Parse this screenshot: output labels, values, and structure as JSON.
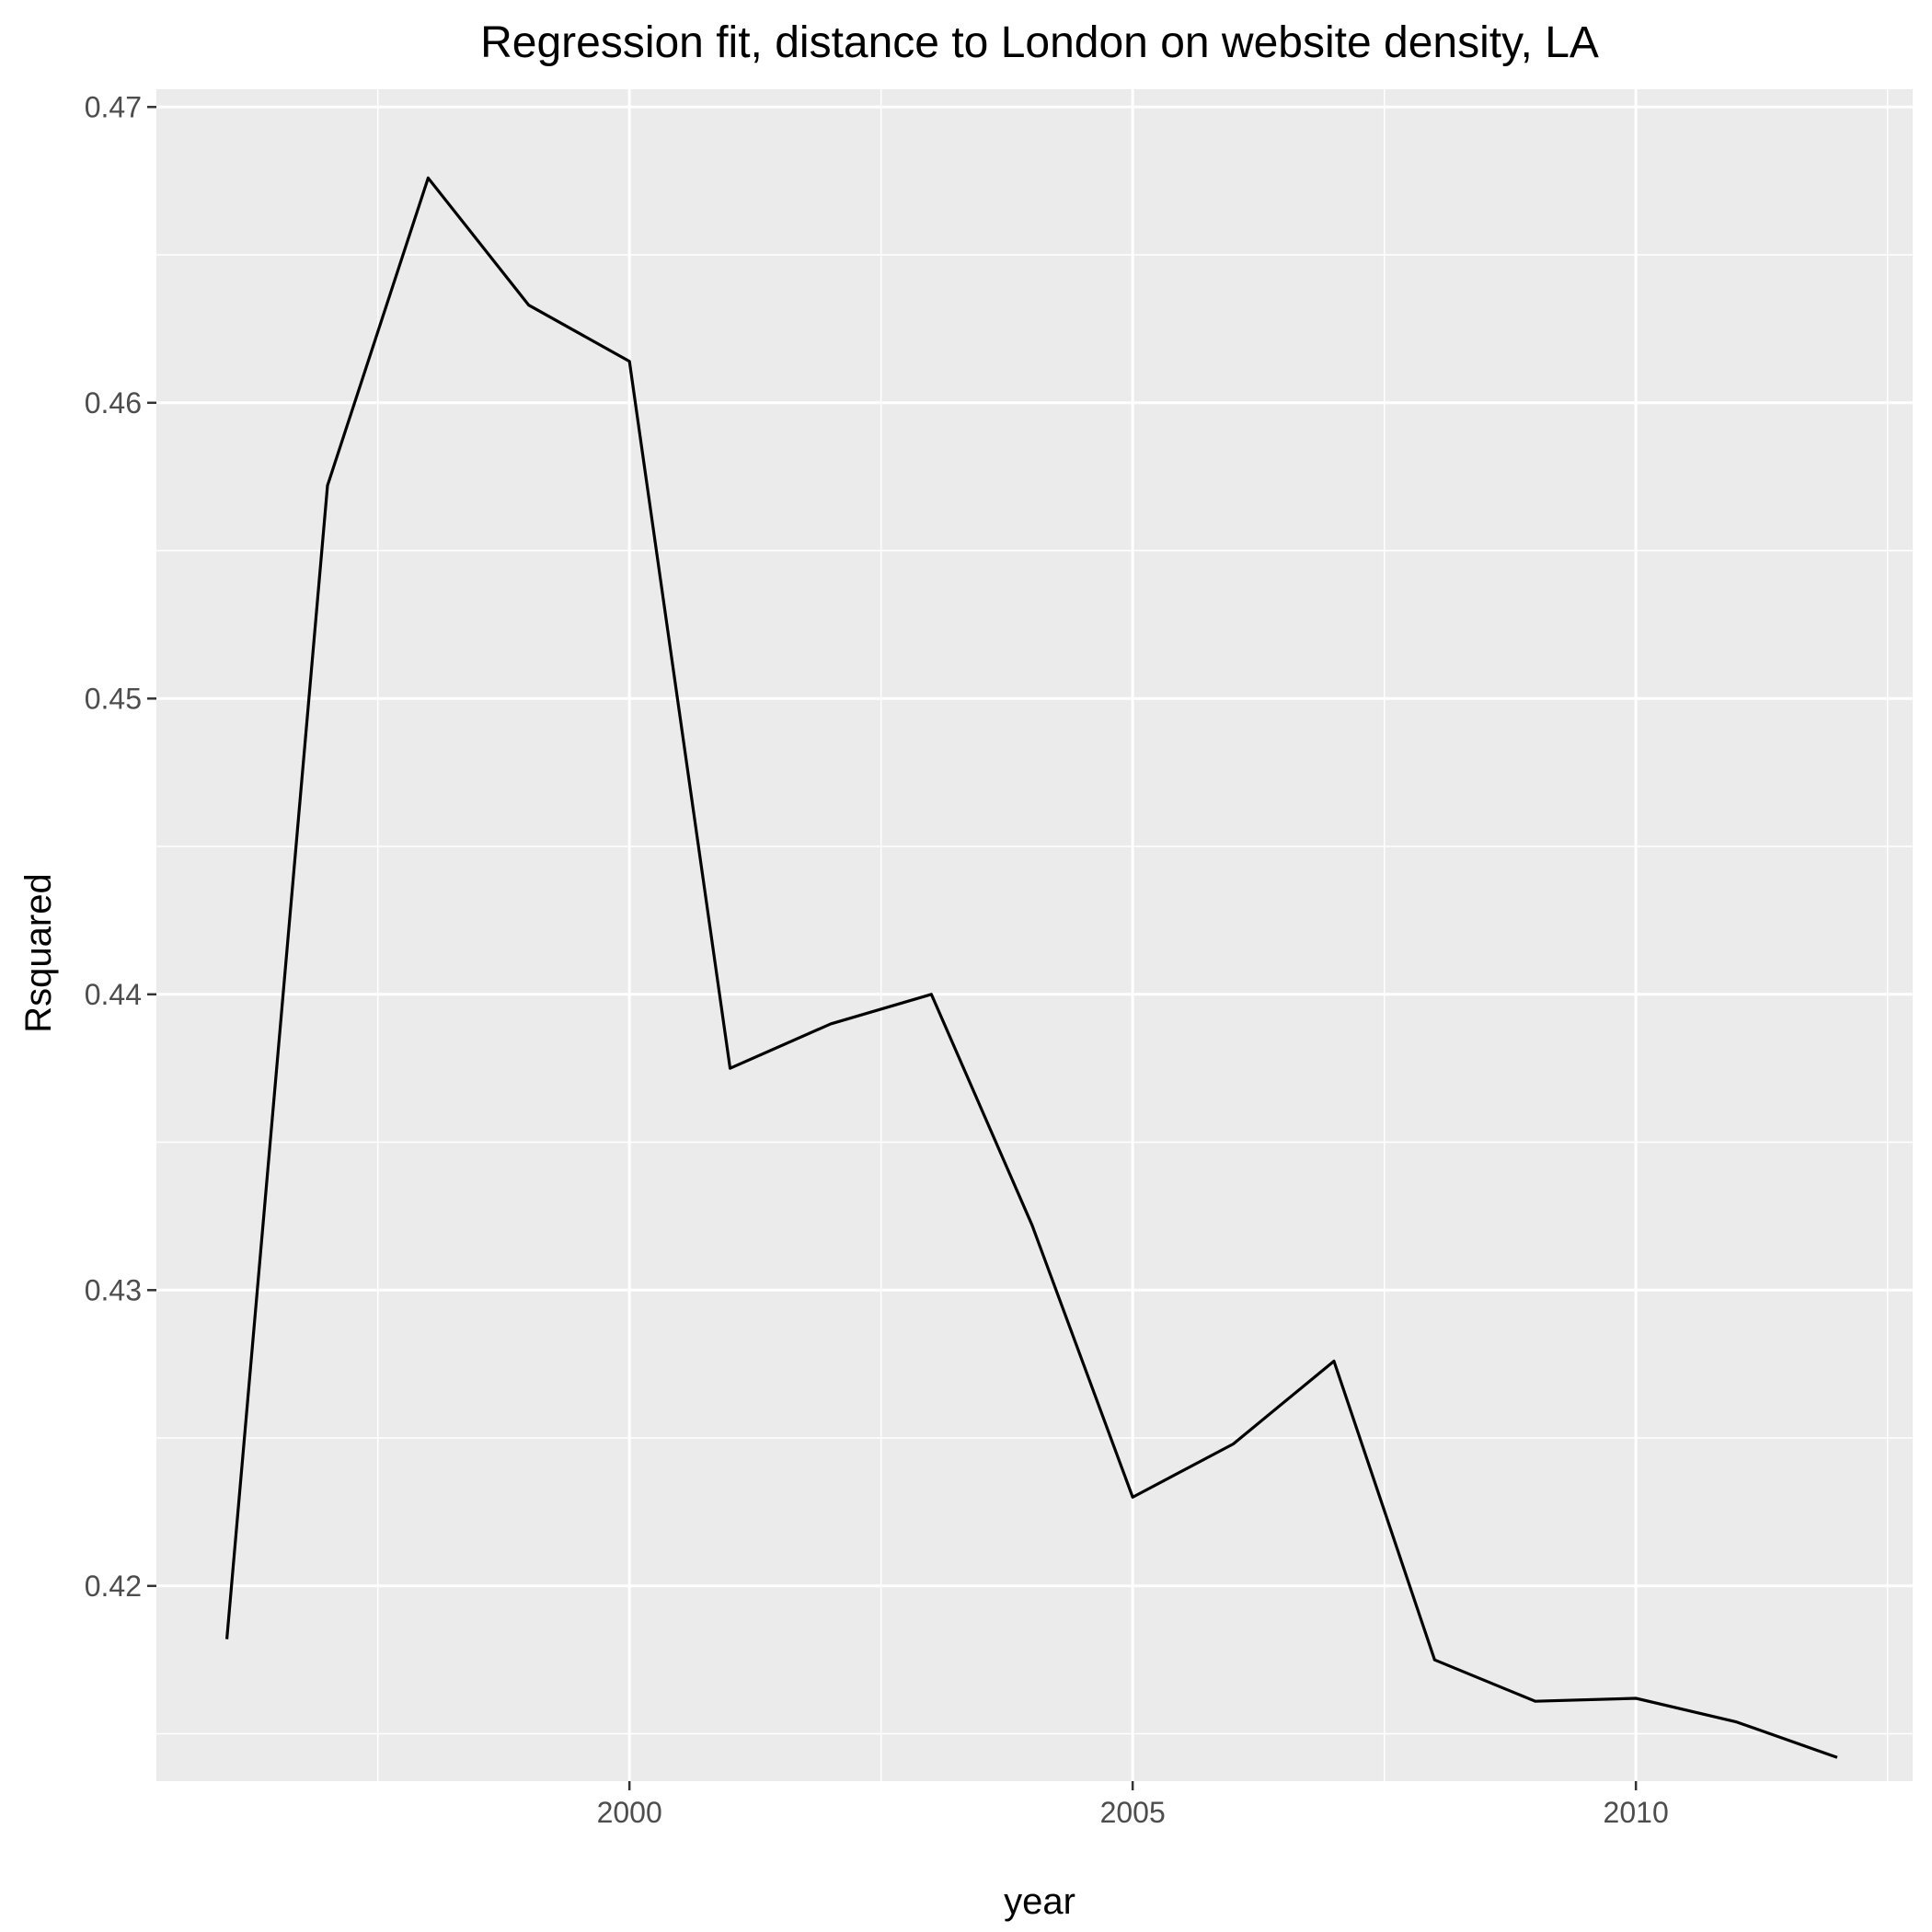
{
  "chart_data": {
    "type": "line",
    "title": "Regression fit, distance to London on website density, LA",
    "xlabel": "year",
    "ylabel": "Rsquared",
    "x": [
      1996,
      1997,
      1998,
      1999,
      2000,
      2001,
      2002,
      2003,
      2004,
      2005,
      2006,
      2007,
      2008,
      2009,
      2010,
      2011,
      2012
    ],
    "series": [
      {
        "values": [
          0.4182,
          0.4572,
          0.4676,
          0.4633,
          0.4614,
          0.4375,
          0.439,
          0.44,
          0.4322,
          0.423,
          0.4248,
          0.4276,
          0.4175,
          0.4161,
          0.4162,
          0.4154,
          0.4142
        ]
      }
    ],
    "xlim": [
      1995.3,
      2012.75
    ],
    "ylim": [
      0.4134,
      0.4706
    ],
    "x_ticks": [
      2000,
      2005,
      2010
    ],
    "x_tick_labels": [
      "2000",
      "2005",
      "2010"
    ],
    "x_minor_ticks": [
      1997.5,
      2002.5,
      2007.5,
      2012.5
    ],
    "y_ticks": [
      0.42,
      0.43,
      0.44,
      0.45,
      0.46,
      0.47
    ],
    "y_tick_labels": [
      "0.42",
      "0.43",
      "0.44",
      "0.45",
      "0.46",
      "0.47"
    ],
    "y_minor_ticks": [
      0.415,
      0.425,
      0.435,
      0.445,
      0.455,
      0.465
    ],
    "grid": true,
    "legend": "none",
    "colors": {
      "panel": "#ebebeb",
      "grid": "#ffffff",
      "line": "#000000",
      "tick_text": "#4d4d4d",
      "tick_mark": "#333333"
    }
  }
}
